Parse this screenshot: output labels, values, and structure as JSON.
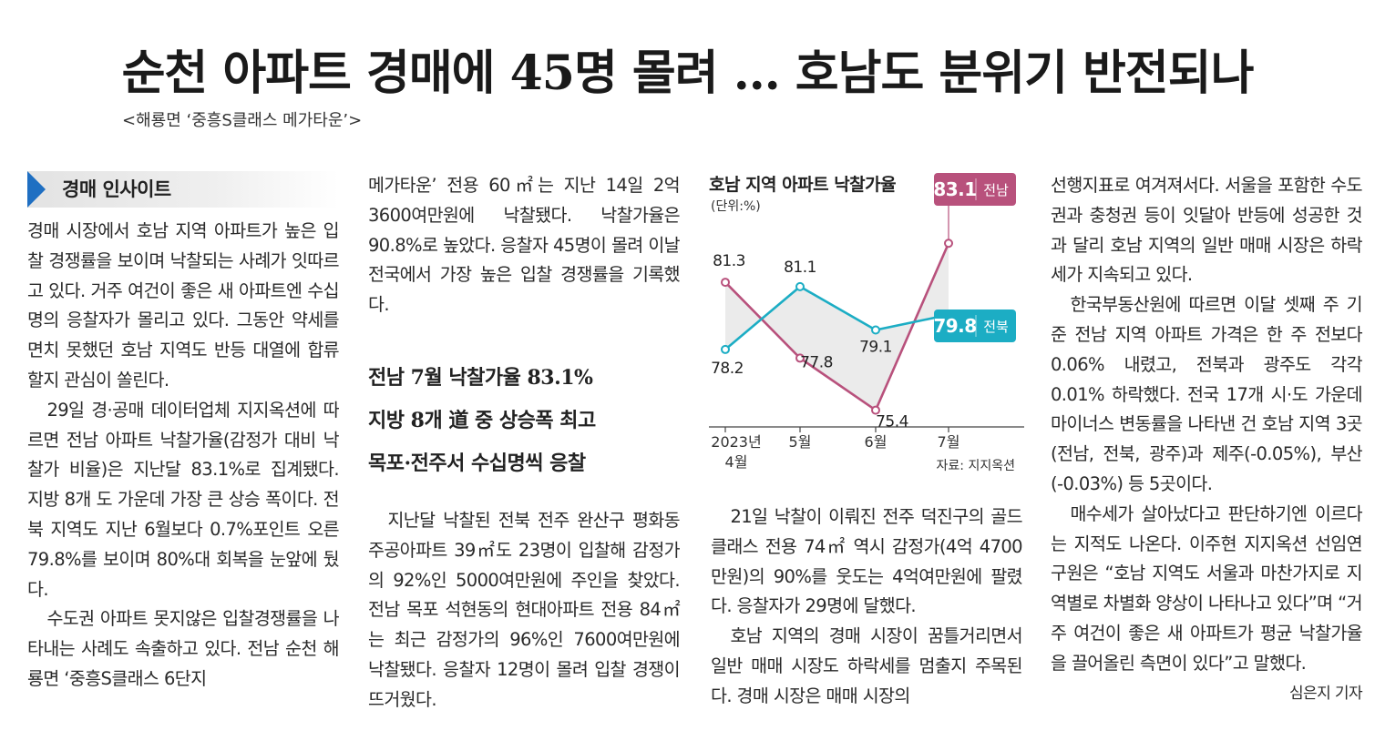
{
  "headline": "순천 아파트 경매에 45명 몰려 … 호남도 분위기 반전되나",
  "photo_caption": "<해룡면 ‘중흥S클래스 메가타운’>",
  "label_box": "경매 인사이트",
  "sub_headlines": [
    "전남 7월 낙찰가율 83.1%",
    "지방 8개 道 중 상승폭 최고",
    "목포·전주서 수십명씩 응찰"
  ],
  "col1": [
    "경매 시장에서 호남 지역 아파트가 높은 입찰 경쟁률을 보이며 낙찰되는 사례가 잇따르고 있다. 거주 여건이 좋은 새 아파트엔 수십 명의 응찰자가 몰리고 있다. 그동안 약세를 면치 못했던 호남 지역도 반등 대열에 합류할지 관심이 쏠린다.",
    "29일 경·공매 데이터업체 지지옥션에 따르면 전남 아파트 낙찰가율(감정가 대비 낙찰가 비율)은 지난달 83.1%로 집계됐다. 지방 8개 도 가운데 가장 큰 상승 폭이다. 전북 지역도 지난 6월보다 0.7%포인트 오른 79.8%를 보이며 80%대 회복을 눈앞에 뒀다.",
    "수도권 아파트 못지않은 입찰경쟁률을 나타내는 사례도 속출하고 있다. 전남 순천 해룡면 ‘중흥S클래스 6단지"
  ],
  "col2_top": [
    "메가타운’ 전용 60㎡는 지난 14일 2억 3600여만원에 낙찰됐다. 낙찰가율은 90.8%로 높았다. 응찰자 45명이 몰려 이날 전국에서 가장 높은 입찰 경쟁률을 기록했다."
  ],
  "col2_bottom": [
    "지난달 낙찰된 전북 전주 완산구 평화동 주공아파트 39㎡도 23명이 입찰해 감정가의 92%인 5000여만원에 주인을 찾았다. 전남 목포 석현동의 현대아파트 전용 84㎡는 최근 감정가의 96%인 7600여만원에 낙찰됐다. 응찰자 12명이 몰려 입찰 경쟁이 뜨거웠다."
  ],
  "col3": [
    "21일 낙찰이 이뤄진 전주 덕진구의 골드클래스 전용 74㎡ 역시 감정가(4억 4700만원)의 90%를 웃도는 4억여만원에 팔렸다. 응찰자가 29명에 달했다.",
    "호남 지역의 경매 시장이 꿈틀거리면서 일반 매매 시장도 하락세를 멈출지 주목된다. 경매 시장은 매매 시장의"
  ],
  "col4": [
    "선행지표로 여겨져서다. 서울을 포함한 수도권과 충청권 등이 잇달아 반등에 성공한 것과 달리 호남 지역의 일반 매매 시장은 하락세가 지속되고 있다.",
    "한국부동산원에 따르면 이달 셋째 주 기준 전남 지역 아파트 가격은 한 주 전보다 0.06% 내렸고, 전북과 광주도 각각 0.01% 하락했다. 전국 17개 시·도 가운데 마이너스 변동률을 나타낸 건 호남 지역 3곳(전남, 전북, 광주)과 제주(-0.05%), 부산(-0.03%) 등 5곳이다.",
    "매수세가 살아났다고 판단하기엔 이르다는 지적도 나온다. 이주현 지지옥션 선임연구원은 “호남 지역도 서울과 마찬가지로 지역별로 차별화 양상이 나타나고 있다”며 “거주 여건이 좋은 새 아파트가 평균 낙찰가율을 끌어올린 측면이 있다”고 말했다."
  ],
  "byline": "심은지 기자",
  "chart_data": {
    "type": "line",
    "title": "호남 지역 아파트 낙찰가율",
    "unit": "(단위:%)",
    "categories": [
      "2023년 4월",
      "5월",
      "6월",
      "7월"
    ],
    "x_labels": [
      [
        "2023년",
        "4월"
      ],
      [
        "5월"
      ],
      [
        "6월"
      ],
      [
        "7월"
      ]
    ],
    "series": [
      {
        "name": "전남",
        "color": "#b8517c",
        "values": [
          81.3,
          77.8,
          75.4,
          83.1
        ]
      },
      {
        "name": "전북",
        "color": "#1cadc4",
        "values": [
          78.2,
          81.1,
          79.1,
          79.8
        ]
      }
    ],
    "ylim": [
      74.5,
      85
    ],
    "source": "자료: 지지옥션"
  }
}
